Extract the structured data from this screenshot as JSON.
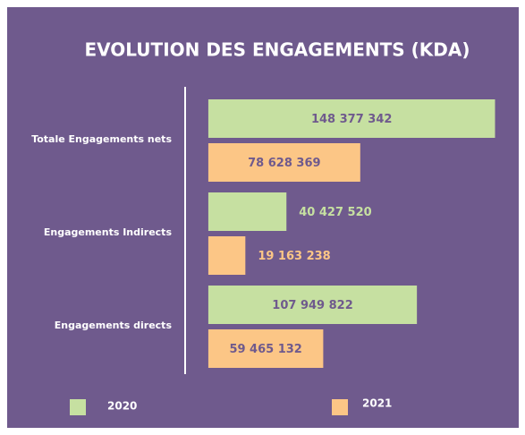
{
  "chart_data": {
    "type": "bar",
    "orientation": "horizontal",
    "title": "EVOLUTION DES ENGAGEMENTS (KDA)",
    "categories": [
      "Totale Engagements nets",
      "Engagements Indirects",
      "Engagements directs"
    ],
    "series": [
      {
        "name": "2020",
        "color": "#c6e0a1",
        "values": [
          148377342,
          40427520,
          107949822
        ],
        "value_labels": [
          "148 377 342",
          "40 427 520",
          "107 949 822"
        ]
      },
      {
        "name": "2021",
        "color": "#fcc686",
        "values": [
          78628369,
          19163238,
          59465132
        ],
        "value_labels": [
          "78 628 369",
          "19 163 238",
          "59 465 132"
        ]
      }
    ],
    "xlim": [
      -12000000,
      150000000
    ],
    "legend": "bottom"
  }
}
